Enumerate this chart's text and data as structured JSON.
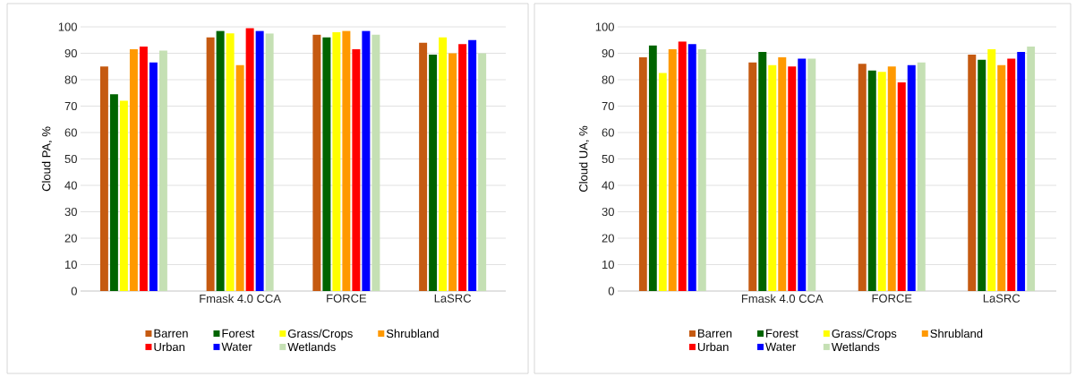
{
  "chart_data": [
    {
      "type": "bar",
      "categories": [
        null,
        "Fmask 4.0 CCA",
        "FORCE",
        "LaSRC"
      ],
      "ylabel": "Cloud PA, %",
      "ylim": [
        0,
        100
      ],
      "yticks": [
        0,
        10,
        20,
        30,
        40,
        50,
        60,
        70,
        80,
        90,
        100
      ],
      "grid": "y",
      "legend": "bottom",
      "series": [
        {
          "name": "Barren",
          "color": "#c55a11",
          "values": [
            85,
            96,
            97,
            94
          ]
        },
        {
          "name": "Forest",
          "color": "#006400",
          "values": [
            74.5,
            98.5,
            96,
            89.5
          ]
        },
        {
          "name": "Grass/Crops",
          "color": "#ffff00",
          "values": [
            72,
            97.5,
            98,
            96
          ]
        },
        {
          "name": "Shrubland",
          "color": "#ff9900",
          "values": [
            91.5,
            85.5,
            98.5,
            90
          ]
        },
        {
          "name": "Urban",
          "color": "#ff0000",
          "values": [
            92.5,
            99.5,
            91.5,
            93.5
          ]
        },
        {
          "name": "Water",
          "color": "#0000ff",
          "values": [
            86.5,
            98.5,
            98.5,
            95
          ]
        },
        {
          "name": "Wetlands",
          "color": "#c5e0b4",
          "values": [
            91,
            97.5,
            97,
            90
          ]
        }
      ]
    },
    {
      "type": "bar",
      "categories": [
        null,
        "Fmask 4.0 CCA",
        "FORCE",
        "LaSRC"
      ],
      "ylabel": "Cloud UA, %",
      "ylim": [
        0,
        100
      ],
      "yticks": [
        0,
        10,
        20,
        30,
        40,
        50,
        60,
        70,
        80,
        90,
        100
      ],
      "grid": "y",
      "legend": "bottom",
      "series": [
        {
          "name": "Barren",
          "color": "#c55a11",
          "values": [
            88.5,
            86.5,
            86,
            89.5
          ]
        },
        {
          "name": "Forest",
          "color": "#006400",
          "values": [
            93,
            90.5,
            83.5,
            87.5
          ]
        },
        {
          "name": "Grass/Crops",
          "color": "#ffff00",
          "values": [
            82.5,
            85.5,
            83,
            91.5
          ]
        },
        {
          "name": "Shrubland",
          "color": "#ff9900",
          "values": [
            91.5,
            88.5,
            85,
            85.5
          ]
        },
        {
          "name": "Urban",
          "color": "#ff0000",
          "values": [
            94.5,
            85,
            79,
            88
          ]
        },
        {
          "name": "Water",
          "color": "#0000ff",
          "values": [
            93.5,
            88,
            85.5,
            90.5
          ]
        },
        {
          "name": "Wetlands",
          "color": "#c5e0b4",
          "values": [
            91.5,
            88,
            86.5,
            92.5
          ]
        }
      ]
    }
  ]
}
